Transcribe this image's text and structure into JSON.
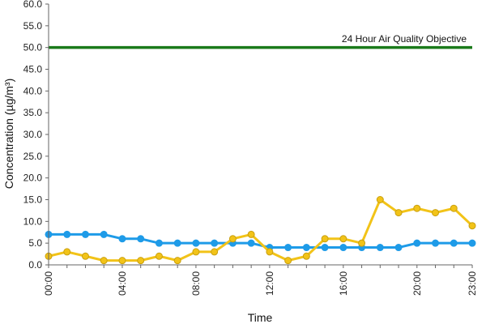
{
  "chart_data": {
    "type": "line",
    "title": "",
    "xlabel": "Time",
    "ylabel": "Concentration (µg/m³)",
    "ylim": [
      0,
      60
    ],
    "y_ticks": [
      "0.0",
      "5.0",
      "10.0",
      "15.0",
      "20.0",
      "25.0",
      "30.0",
      "35.0",
      "40.0",
      "45.0",
      "50.0",
      "55.0",
      "60.0"
    ],
    "x": [
      0,
      1,
      2,
      3,
      4,
      5,
      6,
      7,
      8,
      9,
      10,
      11,
      12,
      13,
      14,
      15,
      16,
      17,
      18,
      19,
      20,
      21,
      22,
      23
    ],
    "x_ticks": [
      {
        "x": 0,
        "label": "00:00"
      },
      {
        "x": 4,
        "label": "04:00"
      },
      {
        "x": 8,
        "label": "08:00"
      },
      {
        "x": 12,
        "label": "12:00"
      },
      {
        "x": 16,
        "label": "16:00"
      },
      {
        "x": 20,
        "label": "20:00"
      },
      {
        "x": 23,
        "label": "23:00"
      }
    ],
    "grid": false,
    "legend": "none",
    "series": [
      {
        "color": "#1e9be8",
        "values": [
          7,
          7,
          7,
          7,
          6,
          6,
          5,
          5,
          5,
          5,
          5,
          5,
          4,
          4,
          4,
          4,
          4,
          4,
          4,
          4,
          5,
          5,
          5,
          5
        ]
      },
      {
        "color": "#f2c318",
        "values": [
          2,
          3,
          2,
          1,
          1,
          1,
          2,
          1,
          3,
          3,
          6,
          7,
          3,
          1,
          2,
          6,
          6,
          5,
          15,
          12,
          13,
          12,
          13,
          9
        ]
      }
    ],
    "reference_line": {
      "value": 50,
      "label": "24 Hour Air Quality Objective",
      "color": "#1a7a1a"
    }
  }
}
